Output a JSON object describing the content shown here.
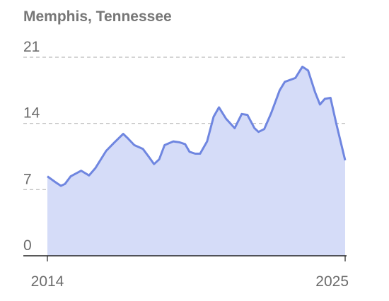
{
  "chart_data": {
    "type": "area",
    "title": "Memphis, Tennessee",
    "x": [
      2014.0,
      2014.29,
      2014.5,
      2014.65,
      2014.86,
      2015.25,
      2015.54,
      2015.78,
      2016.17,
      2016.48,
      2016.8,
      2016.98,
      2017.21,
      2017.53,
      2017.74,
      2017.94,
      2018.13,
      2018.33,
      2018.65,
      2018.88,
      2019.09,
      2019.25,
      2019.46,
      2019.64,
      2019.9,
      2020.14,
      2020.34,
      2020.6,
      2020.92,
      2021.18,
      2021.39,
      2021.65,
      2021.8,
      2022.01,
      2022.27,
      2022.58,
      2022.77,
      2023.16,
      2023.42,
      2023.63,
      2023.89,
      2024.07,
      2024.25,
      2024.46,
      2024.67,
      2025.0
    ],
    "values": [
      8.4,
      7.8,
      7.4,
      7.6,
      8.4,
      9.0,
      8.5,
      9.3,
      11.1,
      12.0,
      12.9,
      12.4,
      11.7,
      11.3,
      10.5,
      9.7,
      10.2,
      11.7,
      12.1,
      12.0,
      11.8,
      11.0,
      10.8,
      10.8,
      12.1,
      14.7,
      15.7,
      14.5,
      13.5,
      15.0,
      14.9,
      13.5,
      13.1,
      13.4,
      15.1,
      17.5,
      18.4,
      18.8,
      20.0,
      19.6,
      17.3,
      16.0,
      16.6,
      16.7,
      14.0,
      10.1
    ],
    "color": "#6f86e0",
    "fill": "#d5dcf8",
    "xlim": [
      2014,
      2025
    ],
    "xticks": [
      2014,
      2025
    ],
    "ylim": [
      0,
      21
    ],
    "yticks": [
      0,
      7,
      14,
      21
    ],
    "grid": true
  }
}
